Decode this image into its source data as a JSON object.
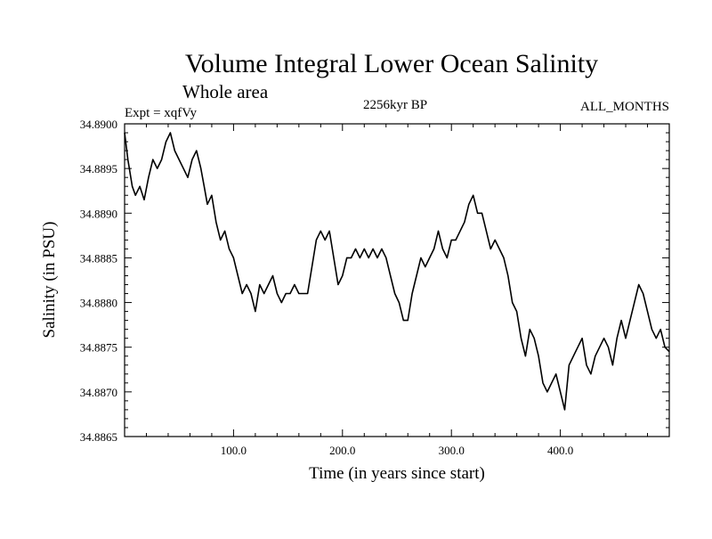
{
  "chart_data": {
    "type": "line",
    "title": "Volume Integral Lower Ocean Salinity",
    "subtitle": "Whole area",
    "experiment_label": "Expt = xqfVy",
    "period_label": "2256kyr BP",
    "months_label": "ALL_MONTHS",
    "xlabel": "Time (in years since start)",
    "ylabel": "Salinity (in PSU)",
    "xlim": [
      0,
      500
    ],
    "ylim": [
      34.8865,
      34.89
    ],
    "x_ticks": [
      100,
      200,
      300,
      400
    ],
    "x_tick_labels": [
      "100.0",
      "200.0",
      "300.0",
      "400.0"
    ],
    "y_ticks": [
      34.8865,
      34.887,
      34.8875,
      34.888,
      34.8885,
      34.889,
      34.8895,
      34.89
    ],
    "y_tick_labels": [
      "34.8865",
      "34.8870",
      "34.8875",
      "34.8880",
      "34.8885",
      "34.8890",
      "34.8895",
      "34.8900"
    ],
    "series": [
      {
        "name": "Salinity",
        "x": [
          0,
          3,
          7,
          10,
          14,
          18,
          22,
          26,
          30,
          34,
          38,
          42,
          46,
          50,
          54,
          58,
          62,
          66,
          70,
          73,
          76,
          80,
          84,
          88,
          92,
          96,
          100,
          104,
          108,
          112,
          116,
          120,
          124,
          128,
          132,
          136,
          140,
          144,
          148,
          152,
          156,
          160,
          164,
          168,
          172,
          176,
          180,
          184,
          188,
          192,
          196,
          200,
          204,
          208,
          212,
          216,
          220,
          224,
          228,
          232,
          236,
          240,
          244,
          248,
          252,
          256,
          260,
          264,
          268,
          272,
          276,
          280,
          284,
          288,
          292,
          296,
          300,
          304,
          308,
          312,
          316,
          320,
          324,
          328,
          332,
          336,
          340,
          344,
          348,
          352,
          356,
          360,
          364,
          368,
          372,
          376,
          380,
          384,
          388,
          392,
          396,
          400,
          404,
          408,
          412,
          416,
          420,
          424,
          428,
          432,
          436,
          440,
          444,
          448,
          452,
          456,
          460,
          464,
          468,
          472,
          476,
          480,
          484,
          488,
          492,
          496,
          500
        ],
        "values": [
          34.8899,
          34.8896,
          34.8893,
          34.8892,
          34.8893,
          34.88915,
          34.8894,
          34.8896,
          34.8895,
          34.8896,
          34.8898,
          34.8899,
          34.8897,
          34.8896,
          34.8895,
          34.8894,
          34.8896,
          34.8897,
          34.8895,
          34.8893,
          34.8891,
          34.8892,
          34.8889,
          34.8887,
          34.8888,
          34.8886,
          34.8885,
          34.8883,
          34.8881,
          34.8882,
          34.8881,
          34.8879,
          34.8882,
          34.8881,
          34.8882,
          34.8883,
          34.8881,
          34.888,
          34.8881,
          34.8881,
          34.8882,
          34.8881,
          34.8881,
          34.8881,
          34.8884,
          34.8887,
          34.8888,
          34.8887,
          34.8888,
          34.8885,
          34.8882,
          34.8883,
          34.8885,
          34.8885,
          34.8886,
          34.8885,
          34.8886,
          34.8885,
          34.8886,
          34.8885,
          34.8886,
          34.8885,
          34.8883,
          34.8881,
          34.888,
          34.8878,
          34.8878,
          34.8881,
          34.8883,
          34.8885,
          34.8884,
          34.8885,
          34.8886,
          34.8888,
          34.8886,
          34.8885,
          34.8887,
          34.8887,
          34.8888,
          34.8889,
          34.8891,
          34.8892,
          34.889,
          34.889,
          34.8888,
          34.8886,
          34.8887,
          34.8886,
          34.8885,
          34.8883,
          34.888,
          34.8879,
          34.8876,
          34.8874,
          34.8877,
          34.8876,
          34.8874,
          34.8871,
          34.887,
          34.8871,
          34.8872,
          34.887,
          34.8868,
          34.8873,
          34.8874,
          34.8875,
          34.8876,
          34.8873,
          34.8872,
          34.8874,
          34.8875,
          34.8876,
          34.8875,
          34.8873,
          34.8876,
          34.8878,
          34.8876,
          34.8878,
          34.888,
          34.8882,
          34.8881,
          34.8879,
          34.8877,
          34.8876,
          34.8877,
          34.8875,
          34.88745
        ]
      }
    ],
    "grid": false,
    "line_color": "#000000"
  }
}
